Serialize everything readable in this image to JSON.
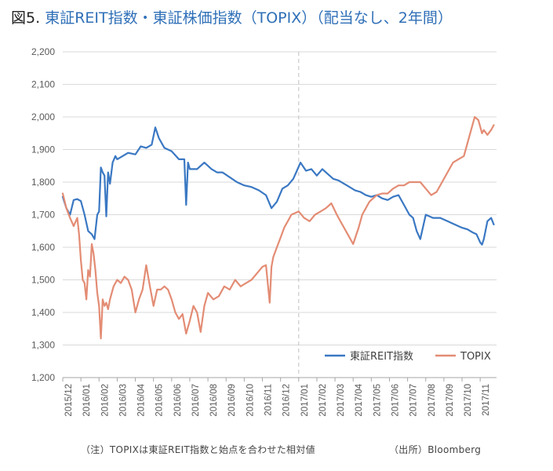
{
  "title": {
    "prefix": "図5.",
    "main": "東証REIT指数・東証株価指数（TOPIX）（配当なし、2年間）"
  },
  "footnote": "（注）TOPIXは東証REIT指数と始点を合わせた相対値",
  "source": "（出所）Bloomberg",
  "colors": {
    "reit": "#3A78C3",
    "topix": "#E38C74",
    "grid": "#D9D9D9",
    "divider": "#BFBFBF"
  },
  "chart_data": {
    "type": "line",
    "title": "東証REIT指数・東証株価指数（TOPIX）（配当なし、2年間）",
    "xlabel": "",
    "ylabel": "",
    "ylim": [
      1200,
      2200
    ],
    "yticks": [
      1200,
      1300,
      1400,
      1500,
      1600,
      1700,
      1800,
      1900,
      2000,
      2100,
      2200
    ],
    "ytick_labels": [
      "1,200",
      "1,300",
      "1,400",
      "1,500",
      "1,600",
      "1,700",
      "1,800",
      "1,900",
      "2,000",
      "2,100",
      "2,200"
    ],
    "categories": [
      "2015/12",
      "2016/01",
      "2016/02",
      "2016/03",
      "2016/04",
      "2016/05",
      "2016/06",
      "2016/07",
      "2016/08",
      "2016/09",
      "2016/10",
      "2016/11",
      "2016/12",
      "2017/01",
      "2017/02",
      "2017/03",
      "2017/04",
      "2017/05",
      "2017/06",
      "2017/07",
      "2017/08",
      "2017/09",
      "2017/10",
      "2017/11"
    ],
    "xlim": [
      0,
      23.9
    ],
    "divider_x": 13,
    "grid": true,
    "legend_position": "bottom-right",
    "series": [
      {
        "name": "東証REIT指数",
        "color": "#3A78C3",
        "x": [
          0.0,
          0.2,
          0.4,
          0.6,
          0.8,
          1.0,
          1.2,
          1.4,
          1.6,
          1.75,
          1.9,
          2.0,
          2.1,
          2.2,
          2.3,
          2.4,
          2.5,
          2.6,
          2.75,
          2.9,
          3.0,
          3.3,
          3.6,
          4.0,
          4.3,
          4.6,
          4.9,
          5.1,
          5.3,
          5.6,
          6.0,
          6.4,
          6.7,
          6.8,
          6.9,
          7.0,
          7.4,
          7.8,
          8.2,
          8.5,
          8.8,
          9.2,
          9.6,
          10.0,
          10.4,
          10.8,
          11.2,
          11.5,
          11.8,
          12.1,
          12.4,
          12.7,
          12.9,
          13.1,
          13.4,
          13.7,
          14.0,
          14.3,
          14.6,
          14.9,
          15.2,
          15.5,
          15.8,
          16.1,
          16.4,
          16.7,
          17.0,
          17.3,
          17.6,
          17.9,
          18.2,
          18.5,
          18.8,
          19.1,
          19.3,
          19.5,
          19.7,
          20.0,
          20.4,
          20.8,
          21.2,
          21.6,
          22.0,
          22.3,
          22.6,
          22.8,
          23.0,
          23.1,
          23.2,
          23.4,
          23.6,
          23.75
        ],
        "values": [
          1755,
          1720,
          1700,
          1745,
          1748,
          1742,
          1700,
          1650,
          1640,
          1625,
          1700,
          1710,
          1845,
          1830,
          1820,
          1695,
          1830,
          1795,
          1860,
          1880,
          1870,
          1880,
          1890,
          1885,
          1910,
          1905,
          1915,
          1968,
          1935,
          1905,
          1895,
          1870,
          1870,
          1730,
          1860,
          1840,
          1840,
          1860,
          1840,
          1830,
          1830,
          1815,
          1800,
          1790,
          1785,
          1775,
          1760,
          1720,
          1740,
          1780,
          1790,
          1810,
          1835,
          1860,
          1835,
          1840,
          1820,
          1840,
          1825,
          1810,
          1805,
          1795,
          1785,
          1775,
          1770,
          1760,
          1755,
          1760,
          1750,
          1745,
          1755,
          1760,
          1730,
          1700,
          1690,
          1650,
          1625,
          1700,
          1690,
          1690,
          1680,
          1670,
          1660,
          1655,
          1645,
          1640,
          1615,
          1608,
          1625,
          1680,
          1690,
          1670
        ]
      },
      {
        "name": "TOPIX",
        "color": "#E38C74",
        "x": [
          0.0,
          0.2,
          0.4,
          0.6,
          0.8,
          0.9,
          1.0,
          1.1,
          1.2,
          1.3,
          1.4,
          1.5,
          1.6,
          1.7,
          1.8,
          1.9,
          2.0,
          2.1,
          2.2,
          2.3,
          2.4,
          2.5,
          2.6,
          2.8,
          3.0,
          3.2,
          3.4,
          3.6,
          3.8,
          4.0,
          4.2,
          4.4,
          4.6,
          4.8,
          5.0,
          5.2,
          5.4,
          5.6,
          5.8,
          6.0,
          6.2,
          6.4,
          6.6,
          6.8,
          7.0,
          7.2,
          7.4,
          7.6,
          7.8,
          8.0,
          8.3,
          8.6,
          8.9,
          9.2,
          9.5,
          9.8,
          10.1,
          10.4,
          10.7,
          11.0,
          11.2,
          11.4,
          11.5,
          11.6,
          11.8,
          12.0,
          12.2,
          12.4,
          12.6,
          12.8,
          13.0,
          13.3,
          13.6,
          13.9,
          14.2,
          14.5,
          14.8,
          15.1,
          15.4,
          15.7,
          16.0,
          16.3,
          16.5,
          16.7,
          16.9,
          17.1,
          17.3,
          17.6,
          17.9,
          18.2,
          18.5,
          18.8,
          19.1,
          19.4,
          19.7,
          20.0,
          20.3,
          20.6,
          20.9,
          21.2,
          21.5,
          21.8,
          22.1,
          22.3,
          22.5,
          22.7,
          22.9,
          23.1,
          23.2,
          23.4,
          23.6,
          23.75
        ],
        "values": [
          1765,
          1720,
          1690,
          1665,
          1690,
          1640,
          1560,
          1500,
          1490,
          1440,
          1530,
          1510,
          1610,
          1580,
          1530,
          1460,
          1420,
          1320,
          1440,
          1420,
          1430,
          1410,
          1440,
          1480,
          1500,
          1490,
          1510,
          1500,
          1470,
          1400,
          1440,
          1470,
          1545,
          1480,
          1420,
          1470,
          1470,
          1480,
          1470,
          1440,
          1400,
          1380,
          1395,
          1335,
          1375,
          1420,
          1400,
          1340,
          1420,
          1460,
          1440,
          1450,
          1480,
          1470,
          1500,
          1480,
          1490,
          1500,
          1520,
          1540,
          1545,
          1430,
          1540,
          1570,
          1600,
          1630,
          1660,
          1680,
          1700,
          1705,
          1710,
          1690,
          1680,
          1700,
          1710,
          1720,
          1735,
          1700,
          1670,
          1640,
          1610,
          1660,
          1700,
          1720,
          1740,
          1750,
          1760,
          1765,
          1765,
          1780,
          1790,
          1790,
          1800,
          1800,
          1800,
          1780,
          1760,
          1770,
          1800,
          1830,
          1860,
          1870,
          1880,
          1920,
          1960,
          2000,
          1990,
          1950,
          1960,
          1945,
          1960,
          1975
        ]
      }
    ]
  }
}
